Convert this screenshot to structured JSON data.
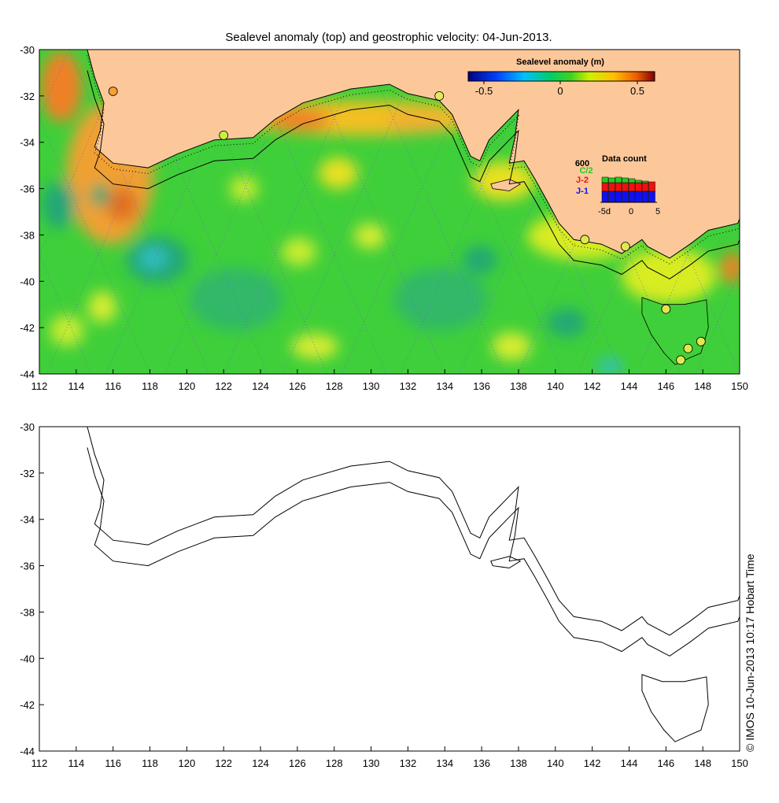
{
  "figure": {
    "title": "Sealevel anomaly (top) and geostrophic velocity: 04-Jun-2013.",
    "credit": "© IMOS 10-Jun-2013 10:17 Hobart Time"
  },
  "colors": {
    "land": "#fcc89a",
    "ocean_base": "#3fcf3a",
    "positive": "#f0a030",
    "negative": "#23a875",
    "frame": "#000000"
  },
  "top_map": {
    "x_ticks": [
      "112",
      "114",
      "116",
      "118",
      "120",
      "122",
      "124",
      "126",
      "128",
      "130",
      "132",
      "134",
      "136",
      "138",
      "140",
      "142",
      "144",
      "146",
      "148",
      "150"
    ],
    "y_ticks": [
      "-30",
      "-32",
      "-34",
      "-36",
      "-38",
      "-40",
      "-42",
      "-44"
    ],
    "xlim": [
      112,
      150
    ],
    "ylim": [
      -44,
      -30
    ],
    "colorbar": {
      "label": "Sealevel anomaly (m)",
      "ticks": [
        "-0.5",
        "0",
        "0.5"
      ],
      "range": [
        -0.6,
        0.6
      ]
    },
    "data_count": {
      "title": "Data count",
      "max_label": "600",
      "axis_labels": [
        "-5d",
        "0",
        "5"
      ],
      "series": [
        {
          "name": "C/2",
          "color": "#22cc22"
        },
        {
          "name": "J-2",
          "color": "#ee1111"
        },
        {
          "name": "J-1",
          "color": "#1111ee"
        }
      ]
    },
    "tide_gauges": [
      {
        "lon": 116.0,
        "lat": -31.8,
        "color": "#f5a030"
      },
      {
        "lon": 122.0,
        "lat": -33.7,
        "color": "#c8f040"
      },
      {
        "lon": 133.7,
        "lat": -32.0,
        "color": "#e8e860"
      },
      {
        "lon": 141.6,
        "lat": -38.2,
        "color": "#e0e850"
      },
      {
        "lon": 143.8,
        "lat": -38.5,
        "color": "#e0e850"
      },
      {
        "lon": 146.0,
        "lat": -41.2,
        "color": "#e0e850"
      },
      {
        "lon": 147.2,
        "lat": -42.9,
        "color": "#e0e850"
      },
      {
        "lon": 147.9,
        "lat": -42.6,
        "color": "#e0e850"
      },
      {
        "lon": 146.8,
        "lat": -43.4,
        "color": "#e0e850"
      }
    ]
  },
  "bottom_map": {
    "x_ticks": [
      "112",
      "114",
      "116",
      "118",
      "120",
      "122",
      "124",
      "126",
      "128",
      "130",
      "132",
      "134",
      "136",
      "138",
      "140",
      "142",
      "144",
      "146",
      "148",
      "150"
    ],
    "y_ticks": [
      "-30",
      "-32",
      "-34",
      "-36",
      "-38",
      "-40",
      "-42",
      "-44"
    ],
    "xlim": [
      112,
      150
    ],
    "ylim": [
      -44,
      -30
    ]
  },
  "coast_lonlat": [
    [
      114.6,
      -30
    ],
    [
      115.0,
      -31.2
    ],
    [
      115.5,
      -32.3
    ],
    [
      115.3,
      -33.5
    ],
    [
      115.0,
      -34.2
    ],
    [
      116.0,
      -34.9
    ],
    [
      117.9,
      -35.1
    ],
    [
      119.5,
      -34.5
    ],
    [
      121.5,
      -33.9
    ],
    [
      123.6,
      -33.8
    ],
    [
      124.8,
      -33.0
    ],
    [
      126.3,
      -32.3
    ],
    [
      128.9,
      -31.7
    ],
    [
      131.0,
      -31.5
    ],
    [
      132.0,
      -31.9
    ],
    [
      133.7,
      -32.2
    ],
    [
      134.4,
      -32.8
    ],
    [
      135.4,
      -34.6
    ],
    [
      135.9,
      -34.8
    ],
    [
      136.4,
      -33.9
    ],
    [
      137.5,
      -33.0
    ],
    [
      138.0,
      -32.6
    ],
    [
      137.8,
      -33.8
    ],
    [
      137.5,
      -34.9
    ],
    [
      138.3,
      -34.8
    ],
    [
      138.9,
      -35.6
    ],
    [
      139.6,
      -36.6
    ],
    [
      140.2,
      -37.5
    ],
    [
      141.0,
      -38.2
    ],
    [
      142.5,
      -38.4
    ],
    [
      143.6,
      -38.8
    ],
    [
      144.7,
      -38.2
    ],
    [
      145.0,
      -38.5
    ],
    [
      146.2,
      -39.0
    ],
    [
      147.3,
      -38.4
    ],
    [
      148.3,
      -37.8
    ],
    [
      149.9,
      -37.5
    ],
    [
      150,
      -37.3
    ]
  ],
  "tasmania_lonlat": [
    [
      144.7,
      -40.7
    ],
    [
      145.8,
      -41.0
    ],
    [
      147.0,
      -41.0
    ],
    [
      148.2,
      -40.8
    ],
    [
      148.3,
      -42.0
    ],
    [
      147.9,
      -43.1
    ],
    [
      147.3,
      -43.3
    ],
    [
      146.5,
      -43.6
    ],
    [
      145.9,
      -43.1
    ],
    [
      145.2,
      -42.3
    ],
    [
      144.7,
      -41.4
    ],
    [
      144.7,
      -40.7
    ]
  ],
  "kangaroo_lonlat": [
    [
      136.5,
      -35.8
    ],
    [
      137.5,
      -35.6
    ],
    [
      138.1,
      -35.8
    ],
    [
      137.5,
      -36.1
    ],
    [
      136.6,
      -36.0
    ],
    [
      136.5,
      -35.8
    ]
  ]
}
